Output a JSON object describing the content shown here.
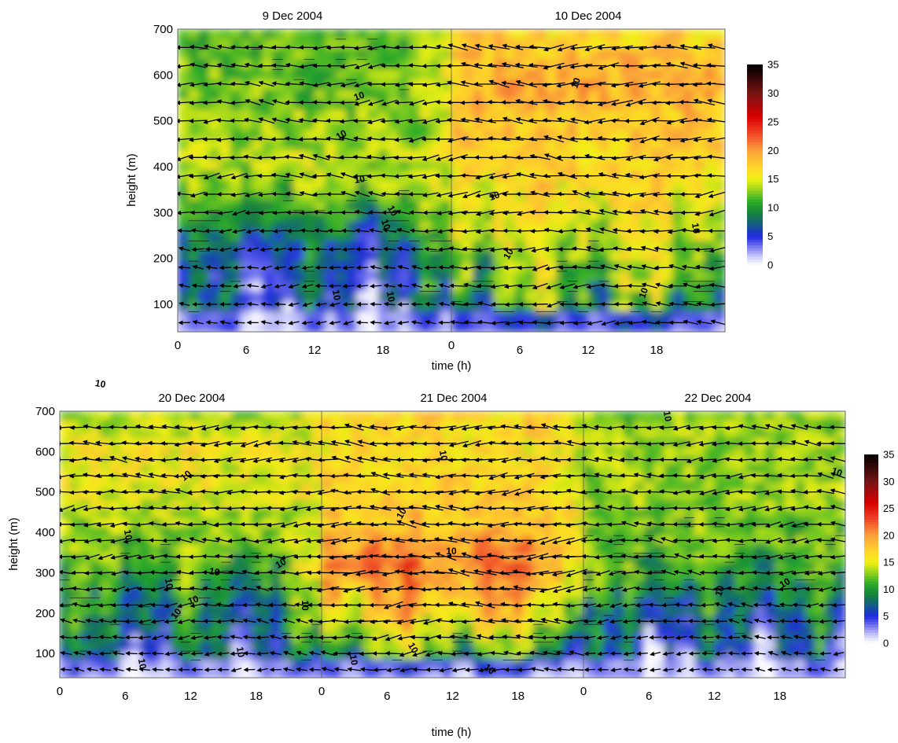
{
  "chart_data": [
    {
      "type": "heatmap",
      "day_titles": [
        "9 Dec 2004",
        "10 Dec 2004"
      ],
      "xlabel": "time (h)",
      "ylabel": "height (m)",
      "x_tick_labels": [
        "0",
        "6",
        "12",
        "18",
        "0",
        "6",
        "12",
        "18"
      ],
      "y_tick_labels": [
        "100",
        "200",
        "300",
        "400",
        "500",
        "600",
        "700"
      ],
      "ylim": [
        40,
        700
      ],
      "xlim_hours": [
        0,
        48
      ],
      "color_scale": [
        0,
        35
      ],
      "colorbar_ticks": [
        "0",
        "5",
        "10",
        "15",
        "20",
        "25",
        "30",
        "35"
      ],
      "contour_level": 10,
      "contour_labels": [
        "10",
        "10",
        "10",
        "10",
        "10",
        "10",
        "10",
        "10",
        "10",
        "10",
        "10",
        "10"
      ],
      "day_means": [
        [
          6,
          5,
          6,
          6,
          7,
          9,
          11,
          13,
          14,
          13,
          13,
          12,
          12,
          12,
          11
        ],
        [
          11,
          10,
          12,
          13,
          14,
          15,
          16,
          17,
          17,
          18,
          18,
          19,
          19,
          18,
          17
        ]
      ]
    },
    {
      "type": "heatmap",
      "day_titles": [
        "20 Dec 2004",
        "21 Dec 2004",
        "22 Dec 2004"
      ],
      "xlabel": "time (h)",
      "ylabel": "height (m)",
      "x_tick_labels": [
        "0",
        "6",
        "12",
        "18",
        "0",
        "6",
        "12",
        "18",
        "0",
        "6",
        "12",
        "18"
      ],
      "y_tick_labels": [
        "100",
        "200",
        "300",
        "400",
        "500",
        "600",
        "700"
      ],
      "ylim": [
        40,
        700
      ],
      "xlim_hours": [
        0,
        72
      ],
      "color_scale": [
        0,
        35
      ],
      "colorbar_ticks": [
        "0",
        "5",
        "10",
        "15",
        "20",
        "25",
        "30",
        "35"
      ],
      "contour_level": 10,
      "contour_labels": [
        "10",
        "10",
        "10",
        "10",
        "10",
        "10",
        "10",
        "10",
        "10",
        "10",
        "10",
        "10",
        "10",
        "10",
        "10",
        "10",
        "10",
        "10",
        "10",
        "10",
        "10"
      ],
      "day_means": [
        [
          5,
          6,
          7,
          8,
          9,
          10,
          11,
          12,
          13,
          14,
          15,
          15,
          16,
          14,
          13
        ],
        [
          7,
          10,
          13,
          16,
          18,
          20,
          21,
          20,
          18,
          18,
          17,
          17,
          16,
          17,
          17
        ],
        [
          5,
          5,
          6,
          7,
          8,
          10,
          11,
          12,
          12,
          13,
          13,
          13,
          13,
          13,
          12
        ]
      ]
    }
  ]
}
